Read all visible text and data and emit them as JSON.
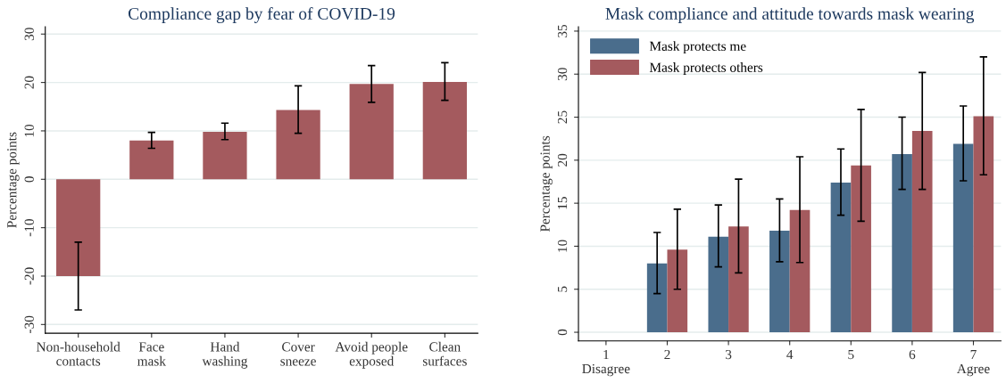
{
  "chart_data": [
    {
      "type": "bar",
      "title": "Compliance gap by fear of COVID-19",
      "ylabel": "Percentage points",
      "categories": [
        "Non-household\ncontacts",
        "Face\nmask",
        "Hand\nwashing",
        "Cover\nsneeze",
        "Avoid people\nexposed",
        "Clean\nsurfaces"
      ],
      "values": [
        -20,
        8.0,
        9.8,
        14.3,
        19.7,
        20.1
      ],
      "color": "#a45a5e",
      "errors": [
        [
          -27,
          -13
        ],
        [
          6.4,
          9.7
        ],
        [
          8.2,
          11.6
        ],
        [
          9.5,
          19.3
        ],
        [
          15.9,
          23.5
        ],
        [
          16.3,
          24.1
        ]
      ],
      "ylim": [
        -31.8,
        31.5
      ],
      "yticks": [
        -30,
        -20,
        -10,
        0,
        10,
        20,
        30
      ],
      "grid": "y",
      "legend": false
    },
    {
      "type": "bar",
      "title": "Mask compliance and attitude towards mask wearing",
      "ylabel": "Percentage points",
      "categories": [
        "1\nDisagree",
        "2",
        "3",
        "4",
        "5",
        "6",
        "7\nAgree"
      ],
      "series": [
        {
          "name": "Mask protects me",
          "color": "#4a6d8c",
          "values": [
            null,
            8.0,
            11.1,
            11.8,
            17.4,
            20.7,
            21.9
          ],
          "errors": [
            null,
            [
              4.5,
              11.6
            ],
            [
              7.6,
              14.8
            ],
            [
              8.2,
              15.5
            ],
            [
              13.6,
              21.3
            ],
            [
              16.6,
              25.0
            ],
            [
              17.6,
              26.3
            ]
          ]
        },
        {
          "name": "Mask protects others",
          "color": "#a45a5e",
          "values": [
            null,
            9.6,
            12.3,
            14.2,
            19.4,
            23.4,
            25.1
          ],
          "errors": [
            null,
            [
              5.0,
              14.3
            ],
            [
              6.9,
              17.8
            ],
            [
              8.1,
              20.4
            ],
            [
              12.9,
              25.9
            ],
            [
              16.6,
              30.2
            ],
            [
              18.3,
              32.0
            ]
          ]
        }
      ],
      "ylim": [
        -1,
        35.5
      ],
      "yticks": [
        0,
        5,
        10,
        15,
        20,
        25,
        30,
        35
      ],
      "grid": "y",
      "legend": "top left"
    }
  ]
}
